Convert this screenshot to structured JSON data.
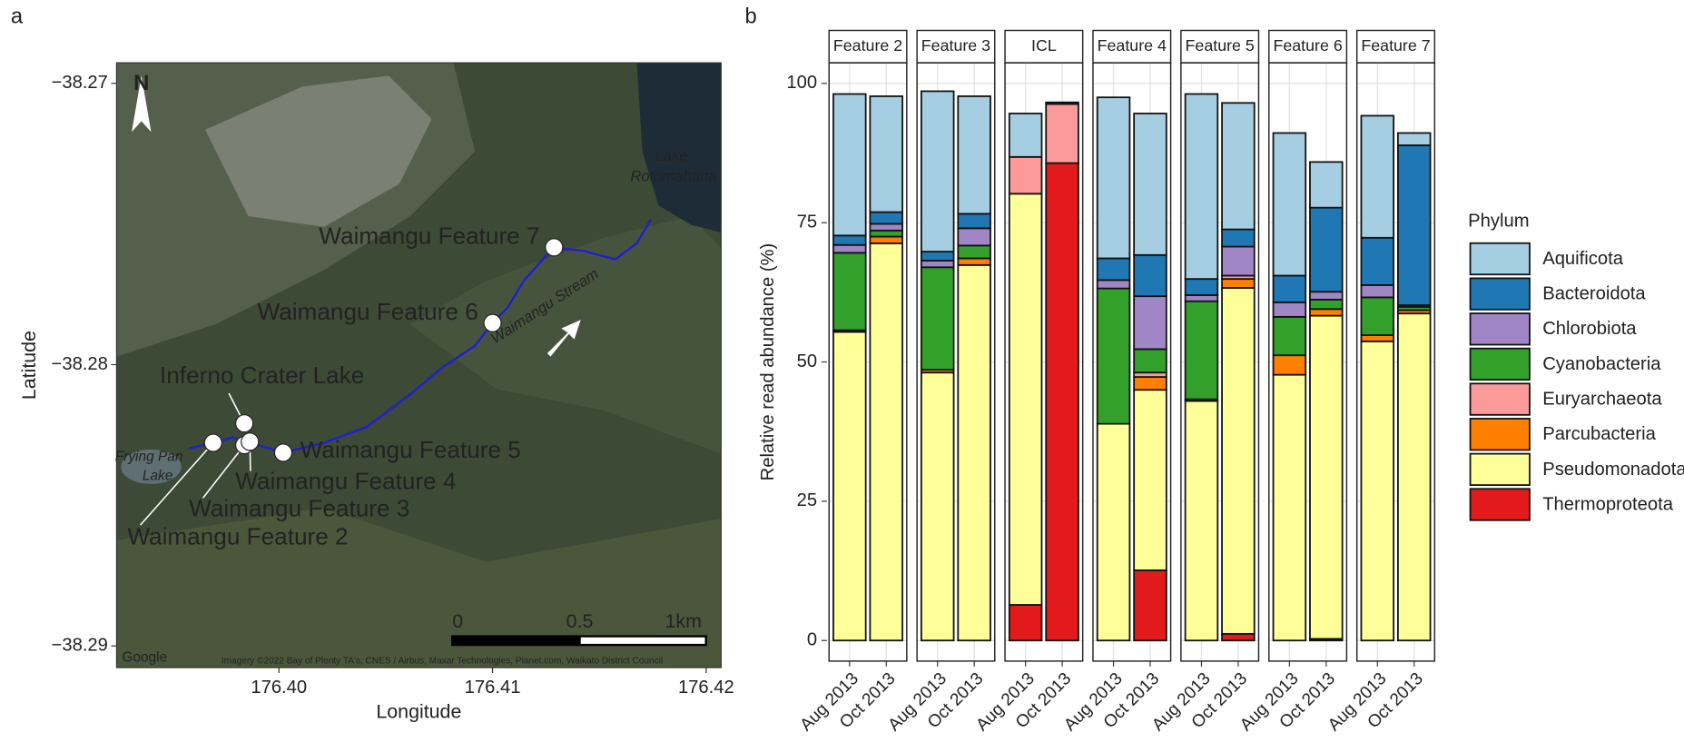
{
  "chart_data": [
    {
      "type": "map",
      "panel_label": "a",
      "xlabel": "Longitude",
      "ylabel": "Latitude",
      "xlim": [
        176.3924,
        176.4207
      ],
      "ylim": [
        -38.29077,
        -38.26927
      ],
      "xticks": [
        {
          "value": 176.4,
          "label": "176.40"
        },
        176.41,
        176.42
      ],
      "yticks": [
        {
          "value": -38.29,
          "label": "−38.29"
        },
        {
          "value": -38.28,
          "label": "−38.28"
        },
        {
          "value": -38.27,
          "label": "−38.27"
        }
      ],
      "sites": [
        {
          "name": "Waimangu Feature 2",
          "lon": 176.39692,
          "lat": -38.28278
        },
        {
          "name": "Waimangu Feature 3",
          "lon": 176.39838,
          "lat": -38.28286
        },
        {
          "name": "Waimangu Feature 4",
          "lon": 176.39864,
          "lat": -38.28274
        },
        {
          "name": "Waimangu Feature 5",
          "lon": 176.4002,
          "lat": -38.28313
        },
        {
          "name": "Inferno Crater Lake",
          "lon": 176.39838,
          "lat": -38.28209
        },
        {
          "name": "Waimangu Feature 6",
          "lon": 176.41,
          "lat": -38.27852
        },
        {
          "name": "Waimangu Feature 7",
          "lon": 176.41288,
          "lat": -38.27583
        }
      ],
      "place_labels": [
        "Lake",
        "Rotomahana",
        "Frying Pan",
        "Lake",
        "Waimangu Stream"
      ],
      "north": "N",
      "scale_labels": [
        "0",
        "0.5",
        "1km"
      ],
      "credits": [
        "Google",
        "Imagery ©2022 Bay of Plenty TA's, CNES / Airbus, Maxar Technologies, Planet.com, Waikato District Council"
      ]
    },
    {
      "type": "stacked_bar",
      "panel_label": "b",
      "ylabel": "Relative read abundance (%)",
      "facets": [
        "Feature 2",
        "Feature 3",
        "ICL",
        "Feature 4",
        "Feature 5",
        "Feature 6",
        "Feature 7"
      ],
      "categories": [
        "Aug 2013",
        "Oct 2013",
        "Aug 2013",
        "Oct 2013",
        "Aug 2013",
        "Oct 2013",
        "Aug 2013",
        "Oct 2013",
        "Aug 2013",
        "Oct 2013",
        "Aug 2013",
        "Oct 2013",
        "Aug 2013",
        "Oct 2013"
      ],
      "ylim": [
        -3.7,
        103.7
      ],
      "yticks": [
        0,
        25,
        50,
        75,
        100
      ],
      "grid": true,
      "legend_title": "Phylum",
      "legend_position": "right",
      "series": [
        {
          "name": "Aquificota",
          "color": "#a6cee3",
          "values": [
            25.4,
            20.8,
            28.8,
            21.1,
            7.8,
            0,
            28.9,
            25.4,
            33.2,
            22.7,
            25.6,
            8.2,
            21.9,
            2.2
          ]
        },
        {
          "name": "Bacteroidota",
          "color": "#1f78b4",
          "values": [
            1.7,
            2.1,
            1.6,
            2.6,
            0,
            0.3,
            3.9,
            7.4,
            2.9,
            3.1,
            4.8,
            15.1,
            8.5,
            28.7
          ]
        },
        {
          "name": "Chlorobiota",
          "color": "#a186c6",
          "values": [
            1.4,
            1.2,
            1.2,
            3.1,
            0,
            0,
            1.5,
            9.5,
            1.1,
            5.2,
            2.6,
            1.4,
            2.2,
            0.3
          ]
        },
        {
          "name": "Cyanobacteria",
          "color": "#33a02c",
          "values": [
            13.9,
            1.1,
            18.4,
            2.3,
            0,
            0,
            24.3,
            4.2,
            17.6,
            0,
            6.9,
            1.7,
            6.8,
            0.6
          ]
        },
        {
          "name": "Euryarchaeota",
          "color": "#fb9a99",
          "values": [
            0,
            0,
            0,
            0,
            6.6,
            10.6,
            0,
            0.8,
            0,
            0.6,
            0,
            0,
            0,
            0
          ]
        },
        {
          "name": "Parcubacteria",
          "color": "#ff7f00",
          "values": [
            0.3,
            1.2,
            0.5,
            1.2,
            0,
            0,
            0,
            2.3,
            0.3,
            1.6,
            3.5,
            1.2,
            1.1,
            0.6
          ]
        },
        {
          "name": "Pseudomonadota",
          "color": "#ffff99",
          "values": [
            55.4,
            71.3,
            48.1,
            67.4,
            73.8,
            0,
            38.9,
            32.4,
            43.0,
            62.1,
            47.7,
            58.0,
            53.7,
            58.7
          ]
        },
        {
          "name": "Thermoproteota",
          "color": "#e31a1c",
          "values": [
            0,
            0,
            0,
            0,
            6.4,
            85.7,
            0,
            12.6,
            0,
            1.2,
            0,
            0.3,
            0,
            0
          ]
        }
      ]
    }
  ]
}
